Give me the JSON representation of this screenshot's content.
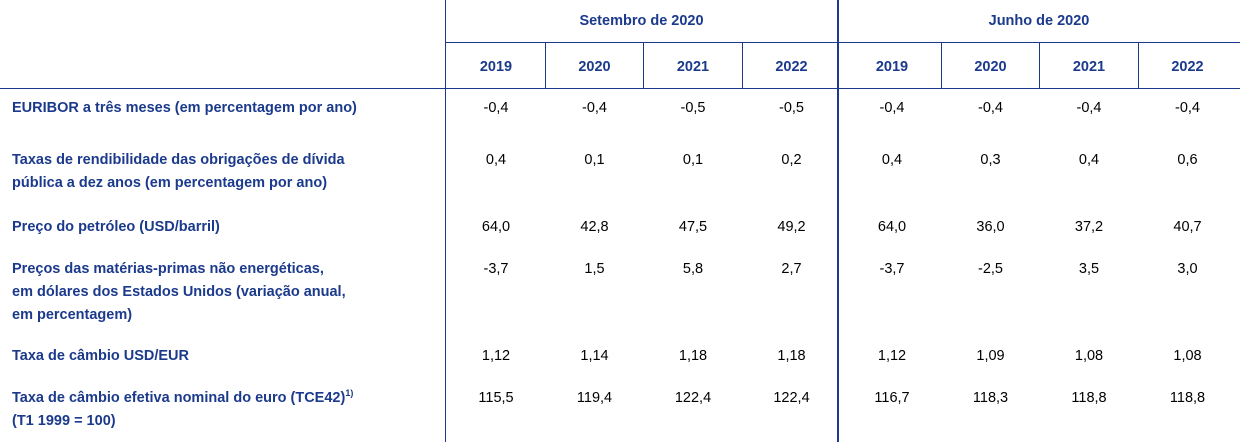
{
  "header": {
    "groups": [
      {
        "title": "Setembro de 2020",
        "years": [
          "2019",
          "2020",
          "2021",
          "2022"
        ]
      },
      {
        "title": "Junho de 2020",
        "years": [
          "2019",
          "2020",
          "2021",
          "2022"
        ]
      }
    ]
  },
  "table": {
    "rows": [
      {
        "label": [
          "EURIBOR a três meses (em percentagem por ano)"
        ],
        "values": [
          "-0,4",
          "-0,4",
          "-0,5",
          "-0,5",
          "-0,4",
          "-0,4",
          "-0,4",
          "-0,4"
        ]
      },
      {
        "label": [
          "Taxas de rendibilidade das obrigações de dívida",
          "pública a dez anos (em percentagem por ano)"
        ],
        "values": [
          "0,4",
          "0,1",
          "0,1",
          "0,2",
          "0,4",
          "0,3",
          "0,4",
          "0,6"
        ]
      },
      {
        "label": [
          "Preço do petróleo (USD/barril)"
        ],
        "values": [
          "64,0",
          "42,8",
          "47,5",
          "49,2",
          "64,0",
          "36,0",
          "37,2",
          "40,7"
        ]
      },
      {
        "label": [
          "Preços das matérias-primas não energéticas,",
          "em dólares dos Estados Unidos (variação anual,",
          "em percentagem)"
        ],
        "values": [
          "-3,7",
          "1,5",
          "5,8",
          "2,7",
          "-3,7",
          "-2,5",
          "3,5",
          "3,0"
        ]
      },
      {
        "label": [
          "Taxa de câmbio USD/EUR"
        ],
        "values": [
          "1,12",
          "1,14",
          "1,18",
          "1,18",
          "1,12",
          "1,09",
          "1,08",
          "1,08"
        ]
      },
      {
        "label": [
          "Taxa de câmbio efetiva nominal do euro (TCE42)",
          "(T1 1999 = 100)"
        ],
        "note": "1)",
        "values": [
          "115,5",
          "119,4",
          "122,4",
          "122,4",
          "116,7",
          "118,3",
          "118,8",
          "118,8"
        ]
      }
    ]
  }
}
